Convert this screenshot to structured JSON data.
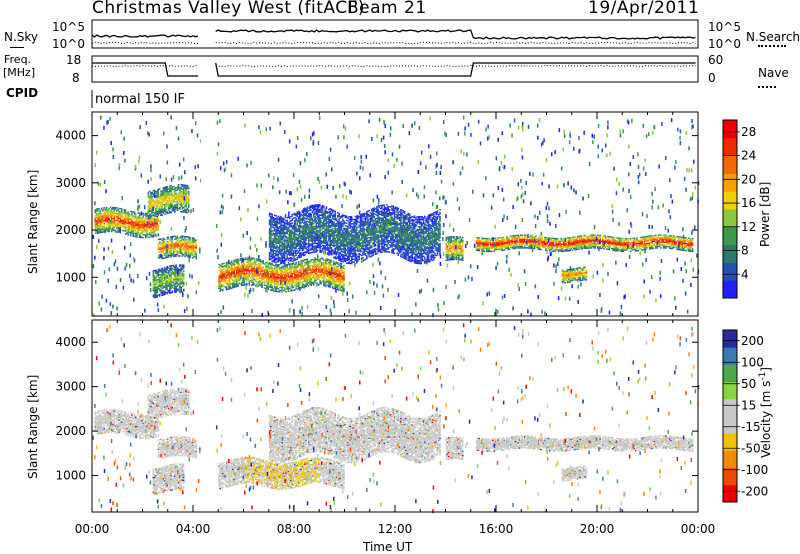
{
  "header": {
    "station": "Christmas Valley West (fitACF)",
    "beam": "Beam 21",
    "date": "19/Apr/2011"
  },
  "left_labels": {
    "nsky": "N.Sky",
    "freq": "Freq.",
    "freq_unit": "[MHz]",
    "cpid": "CPID"
  },
  "right_labels": {
    "nsearch": "N.Search",
    "nave": "Nave"
  },
  "noise_axis": {
    "left_ticks": [
      "10^5",
      "10^0"
    ],
    "right_ticks": [
      "10^5",
      "10^0"
    ]
  },
  "freq_axis": {
    "left_ticks": [
      "18",
      "8"
    ],
    "right_ticks": [
      "60",
      "0"
    ]
  },
  "cpid_text": "normal 150 IF",
  "colors": {
    "power_scale": [
      "#1f1fff",
      "#2050b8",
      "#2c7a6a",
      "#3a9a4a",
      "#8cc83c",
      "#f0d000",
      "#f5a000",
      "#f46a00",
      "#f22a00",
      "#ee0000"
    ],
    "velocity_scale": [
      "#2a2aa0",
      "#3a7ab4",
      "#4ca84a",
      "#8ad444",
      "#c8c8c8",
      "#c8c8c8",
      "#f0c000",
      "#f08a00",
      "#f04a00",
      "#ee0000"
    ]
  },
  "chart_data": [
    {
      "type": "heatmap",
      "name": "power",
      "x_ticks": [
        "00:00",
        "04:00",
        "08:00",
        "12:00",
        "16:00",
        "20:00",
        "00:00"
      ],
      "xlim_hours": [
        0,
        24
      ],
      "y_ticks": [
        "1000",
        "2000",
        "3000",
        "4000"
      ],
      "ylim": [
        180,
        4500
      ],
      "ylabel": "Slant Range [km]",
      "colorbar_label": "Power [dB]",
      "colorbar_ticks": [
        "4",
        "8",
        "12",
        "16",
        "20",
        "24",
        "28"
      ],
      "colorbar_range": [
        0,
        30
      ],
      "features": [
        {
          "t0": 0.1,
          "t1": 2.6,
          "r_center": 2150,
          "r_width": 260,
          "peak": 26
        },
        {
          "t0": 2.6,
          "t1": 4.1,
          "r_center": 1600,
          "r_width": 220,
          "peak": 24
        },
        {
          "t0": 2.2,
          "t1": 3.8,
          "r_center": 2600,
          "r_width": 300,
          "peak": 18
        },
        {
          "t0": 2.4,
          "t1": 3.6,
          "r_center": 900,
          "r_width": 300,
          "peak": 14
        },
        {
          "t0": 5.0,
          "t1": 10.0,
          "r_center": 1050,
          "r_width": 300,
          "peak": 26
        },
        {
          "t0": 7.0,
          "t1": 13.8,
          "r_center": 1900,
          "r_width": 500,
          "peak": 8
        },
        {
          "t0": 14.0,
          "t1": 14.7,
          "r_center": 1550,
          "r_width": 250,
          "peak": 22
        },
        {
          "t0": 15.2,
          "t1": 23.8,
          "r_center": 1720,
          "r_width": 150,
          "peak": 28
        },
        {
          "t0": 18.6,
          "t1": 19.6,
          "r_center": 1050,
          "r_width": 150,
          "peak": 22
        }
      ]
    },
    {
      "type": "heatmap",
      "name": "velocity",
      "x_ticks": [
        "00:00",
        "04:00",
        "08:00",
        "12:00",
        "16:00",
        "20:00",
        "00:00"
      ],
      "xlim_hours": [
        0,
        24
      ],
      "xlabel": "Time UT",
      "y_ticks": [
        "1000",
        "2000",
        "3000",
        "4000"
      ],
      "ylim": [
        180,
        4500
      ],
      "ylabel": "Slant Range [km]",
      "colorbar_label": "Velocity [m s-1]",
      "colorbar_ticks": [
        "200",
        "100",
        "50",
        "15",
        "-15",
        "-50",
        "-100",
        "-200"
      ],
      "colorbar_range": [
        -250,
        250
      ]
    }
  ]
}
